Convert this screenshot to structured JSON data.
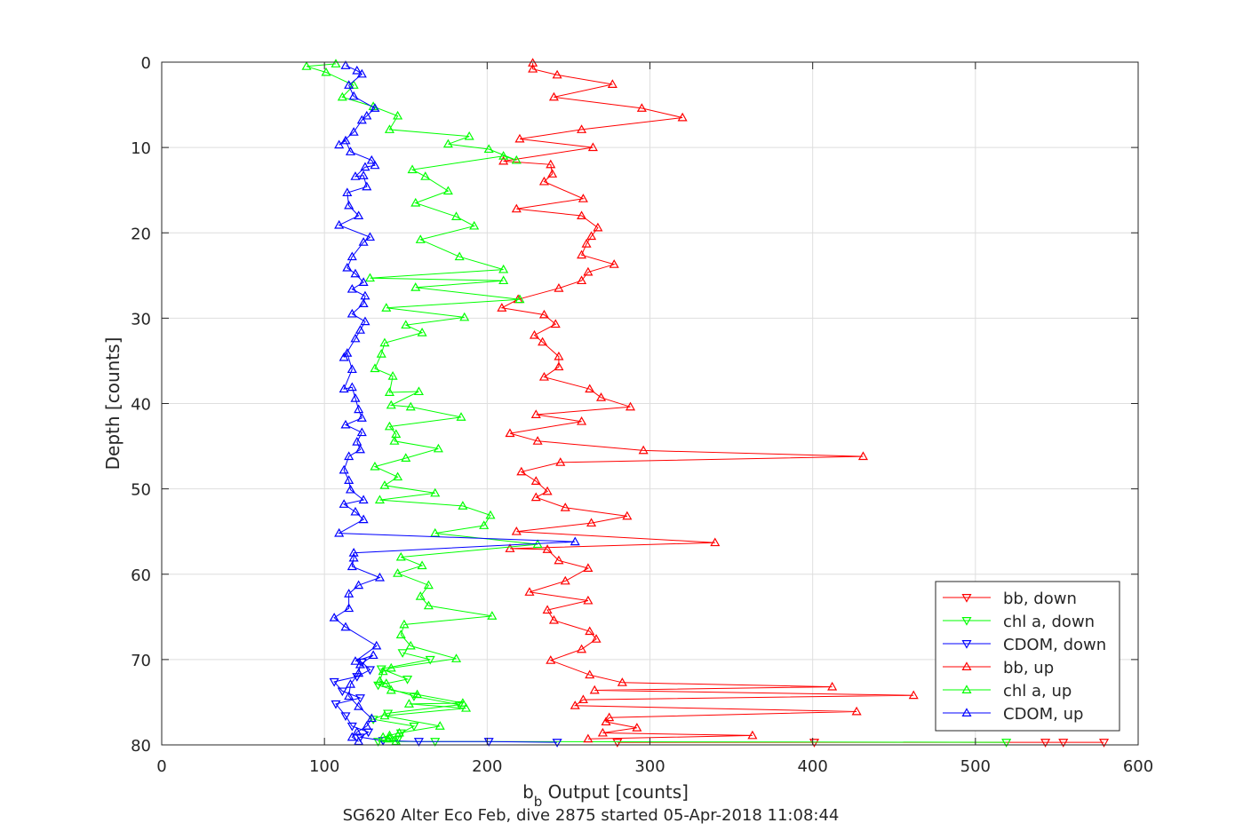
{
  "chart_data": {
    "type": "line",
    "title": "SG620 Alter Eco Feb, dive 2875 started 05-Apr-2018 11:08:44",
    "xlabel_main": "b",
    "xlabel_sub": "b",
    "xlabel_rest": " Output [counts]",
    "ylabel": "Depth [counts]",
    "xlim": [
      0,
      600
    ],
    "ylim": [
      0,
      80
    ],
    "y_reversed": true,
    "grid": true,
    "legend_position": "bottom-right",
    "xticks": [
      "0",
      "100",
      "200",
      "300",
      "400",
      "500",
      "600"
    ],
    "yticks": [
      "0",
      "10",
      "20",
      "30",
      "40",
      "50",
      "60",
      "70",
      "80"
    ],
    "series": [
      {
        "name": "bb, down",
        "color": "#ff0000",
        "marker": "down",
        "points": [
          [
            579,
            79.7
          ],
          [
            554,
            79.7
          ],
          [
            543,
            79.7
          ],
          [
            401,
            79.7
          ],
          [
            280,
            79.7
          ]
        ]
      },
      {
        "name": "chl a, down",
        "color": "#00ff00",
        "marker": "down",
        "points": [
          [
            519,
            79.7
          ],
          [
            168,
            79.6
          ],
          [
            133,
            79.6
          ],
          [
            145,
            79.4
          ],
          [
            147,
            78.6
          ],
          [
            155,
            77.8
          ],
          [
            130,
            77.0
          ],
          [
            139,
            76.3
          ],
          [
            183,
            75.3
          ],
          [
            155,
            74.3
          ],
          [
            133,
            73.0
          ],
          [
            151,
            72.3
          ],
          [
            135,
            71.1
          ],
          [
            165,
            70.0
          ],
          [
            148,
            69.2
          ]
        ]
      },
      {
        "name": "CDOM, down",
        "color": "#0000ff",
        "marker": "down",
        "points": [
          [
            243,
            79.7
          ],
          [
            201,
            79.6
          ],
          [
            158,
            79.6
          ],
          [
            136,
            79.5
          ],
          [
            122,
            79.1
          ],
          [
            127,
            78.5
          ],
          [
            117,
            77.8
          ],
          [
            113,
            76.6
          ],
          [
            107,
            75.2
          ],
          [
            122,
            74.5
          ],
          [
            111,
            73.7
          ],
          [
            106,
            72.6
          ],
          [
            120,
            72.0
          ],
          [
            128,
            71.2
          ],
          [
            123,
            70.3
          ]
        ]
      },
      {
        "name": "bb, up",
        "color": "#ff0000",
        "marker": "up",
        "points": [
          [
            262,
            79.3
          ],
          [
            363,
            78.9
          ],
          [
            271,
            78.6
          ],
          [
            292,
            78.0
          ],
          [
            273,
            77.3
          ],
          [
            275,
            76.8
          ],
          [
            427,
            76.1
          ],
          [
            254,
            75.4
          ],
          [
            259,
            74.7
          ],
          [
            462,
            74.2
          ],
          [
            266,
            73.6
          ],
          [
            412,
            73.2
          ],
          [
            283,
            72.7
          ],
          [
            263,
            71.8
          ],
          [
            239,
            70.1
          ],
          [
            258,
            68.8
          ],
          [
            267,
            67.6
          ],
          [
            263,
            66.7
          ],
          [
            241,
            65.4
          ],
          [
            237,
            64.2
          ],
          [
            262,
            63.1
          ],
          [
            226,
            62.1
          ],
          [
            248,
            60.8
          ],
          [
            262,
            59.3
          ],
          [
            244,
            58.4
          ],
          [
            237,
            57.1
          ],
          [
            214,
            57.0
          ],
          [
            340,
            56.3
          ],
          [
            218,
            55.0
          ],
          [
            264,
            54.0
          ],
          [
            286,
            53.2
          ],
          [
            248,
            52.2
          ],
          [
            230,
            51.0
          ],
          [
            237,
            50.3
          ],
          [
            230,
            49.1
          ],
          [
            221,
            48.0
          ],
          [
            245,
            46.9
          ],
          [
            431,
            46.2
          ],
          [
            296,
            45.5
          ],
          [
            231,
            44.4
          ],
          [
            214,
            43.5
          ],
          [
            258,
            42.1
          ],
          [
            230,
            41.3
          ],
          [
            288,
            40.4
          ],
          [
            270,
            39.3
          ],
          [
            263,
            38.3
          ],
          [
            235,
            36.9
          ],
          [
            244,
            35.7
          ],
          [
            244,
            34.5
          ],
          [
            234,
            32.8
          ],
          [
            229,
            32.0
          ],
          [
            242,
            30.7
          ],
          [
            235,
            29.6
          ],
          [
            209,
            28.8
          ],
          [
            219,
            27.8
          ],
          [
            244,
            26.5
          ],
          [
            258,
            25.6
          ],
          [
            262,
            24.6
          ],
          [
            278,
            23.7
          ],
          [
            258,
            22.6
          ],
          [
            261,
            21.3
          ],
          [
            264,
            20.4
          ],
          [
            268,
            19.4
          ],
          [
            258,
            18.0
          ],
          [
            218,
            17.2
          ],
          [
            259,
            16.0
          ],
          [
            235,
            14.0
          ],
          [
            240,
            13.1
          ],
          [
            239,
            12.0
          ],
          [
            210,
            11.6
          ],
          [
            265,
            10.0
          ],
          [
            220,
            9.0
          ],
          [
            258,
            7.9
          ],
          [
            320,
            6.5
          ],
          [
            295,
            5.4
          ],
          [
            241,
            4.1
          ],
          [
            277,
            2.6
          ],
          [
            243,
            1.5
          ],
          [
            228,
            0.8
          ],
          [
            228,
            0.1
          ]
        ]
      },
      {
        "name": "chl a, up",
        "color": "#00ff00",
        "marker": "up",
        "points": [
          [
            144,
            79.6
          ],
          [
            139,
            79.3
          ],
          [
            140,
            79.2
          ],
          [
            136,
            79.1
          ],
          [
            140,
            78.9
          ],
          [
            146,
            78.6
          ],
          [
            171,
            77.8
          ],
          [
            137,
            76.6
          ],
          [
            187,
            75.7
          ],
          [
            152,
            75.2
          ],
          [
            185,
            75.1
          ],
          [
            157,
            74.1
          ],
          [
            141,
            73.6
          ],
          [
            138,
            72.8
          ],
          [
            134,
            72.5
          ],
          [
            136,
            71.4
          ],
          [
            141,
            71.0
          ],
          [
            181,
            69.9
          ],
          [
            153,
            68.4
          ],
          [
            147,
            67.1
          ],
          [
            149,
            65.9
          ],
          [
            203,
            64.9
          ],
          [
            164,
            63.7
          ],
          [
            159,
            62.6
          ],
          [
            164,
            61.3
          ],
          [
            145,
            59.9
          ],
          [
            160,
            59.0
          ],
          [
            147,
            58.0
          ],
          [
            231,
            56.5
          ],
          [
            168,
            55.2
          ],
          [
            198,
            54.3
          ],
          [
            202,
            53.1
          ],
          [
            185,
            52.0
          ],
          [
            134,
            51.3
          ],
          [
            168,
            50.5
          ],
          [
            137,
            49.6
          ],
          [
            145,
            48.6
          ],
          [
            131,
            47.4
          ],
          [
            150,
            46.4
          ],
          [
            170,
            45.3
          ],
          [
            143,
            44.4
          ],
          [
            144,
            43.6
          ],
          [
            140,
            42.7
          ],
          [
            184,
            41.6
          ],
          [
            153,
            40.4
          ],
          [
            141,
            40.2
          ],
          [
            158,
            38.6
          ],
          [
            140,
            38.7
          ],
          [
            142,
            36.8
          ],
          [
            131,
            35.9
          ],
          [
            135,
            34.2
          ],
          [
            137,
            32.9
          ],
          [
            160,
            31.7
          ],
          [
            150,
            30.8
          ],
          [
            186,
            29.9
          ],
          [
            138,
            28.8
          ],
          [
            220,
            27.8
          ],
          [
            156,
            26.4
          ],
          [
            210,
            25.6
          ],
          [
            128,
            25.3
          ],
          [
            210,
            24.3
          ],
          [
            183,
            22.8
          ],
          [
            159,
            20.8
          ],
          [
            192,
            19.2
          ],
          [
            181,
            18.1
          ],
          [
            156,
            16.5
          ],
          [
            176,
            15.1
          ],
          [
            162,
            13.4
          ],
          [
            154,
            12.6
          ],
          [
            210,
            11.0
          ],
          [
            218,
            11.5
          ],
          [
            201,
            10.2
          ],
          [
            176,
            9.6
          ],
          [
            189,
            8.7
          ],
          [
            140,
            7.9
          ],
          [
            145,
            6.3
          ],
          [
            130,
            5.2
          ],
          [
            111,
            4.1
          ],
          [
            118,
            2.7
          ],
          [
            101,
            1.2
          ],
          [
            89,
            0.5
          ],
          [
            107,
            0.2
          ]
        ]
      },
      {
        "name": "CDOM, up",
        "color": "#0000ff",
        "marker": "up",
        "points": [
          [
            121,
            79.6
          ],
          [
            117,
            79.1
          ],
          [
            120,
            78.5
          ],
          [
            126,
            77.8
          ],
          [
            129,
            76.9
          ],
          [
            121,
            75.5
          ],
          [
            115,
            74.3
          ],
          [
            116,
            72.9
          ],
          [
            121,
            71.6
          ],
          [
            122,
            70.6
          ],
          [
            130,
            69.5
          ],
          [
            119,
            70.2
          ],
          [
            132,
            68.4
          ],
          [
            113,
            66.2
          ],
          [
            106,
            65.1
          ],
          [
            115,
            64.0
          ],
          [
            115,
            62.3
          ],
          [
            121,
            61.3
          ],
          [
            134,
            60.4
          ],
          [
            117,
            59.1
          ],
          [
            118,
            58.1
          ],
          [
            118,
            57.5
          ],
          [
            254,
            56.2
          ],
          [
            109,
            55.2
          ],
          [
            124,
            53.6
          ],
          [
            119,
            52.7
          ],
          [
            112,
            51.8
          ],
          [
            124,
            51.3
          ],
          [
            116,
            50.1
          ],
          [
            115,
            49.0
          ],
          [
            112,
            47.8
          ],
          [
            115,
            46.2
          ],
          [
            122,
            45.4
          ],
          [
            120,
            44.5
          ],
          [
            123,
            43.4
          ],
          [
            113,
            42.5
          ],
          [
            123,
            41.7
          ],
          [
            121,
            40.7
          ],
          [
            119,
            39.4
          ],
          [
            117,
            38.1
          ],
          [
            112,
            38.3
          ],
          [
            117,
            36.0
          ],
          [
            114,
            34.1
          ],
          [
            112,
            34.6
          ],
          [
            119,
            32.4
          ],
          [
            122,
            31.4
          ],
          [
            125,
            30.4
          ],
          [
            117,
            29.5
          ],
          [
            124,
            28.3
          ],
          [
            125,
            27.4
          ],
          [
            117,
            26.6
          ],
          [
            124,
            25.8
          ],
          [
            119,
            24.8
          ],
          [
            114,
            24.1
          ],
          [
            117,
            22.8
          ],
          [
            124,
            21.1
          ],
          [
            128,
            20.5
          ],
          [
            109,
            19.1
          ],
          [
            121,
            18.0
          ],
          [
            115,
            16.8
          ],
          [
            114,
            15.3
          ],
          [
            126,
            14.6
          ],
          [
            124,
            13.3
          ],
          [
            119,
            13.4
          ],
          [
            125,
            12.3
          ],
          [
            131,
            12.1
          ],
          [
            129,
            11.5
          ],
          [
            116,
            10.5
          ],
          [
            113,
            9.2
          ],
          [
            109,
            9.7
          ],
          [
            118,
            8.2
          ],
          [
            123,
            6.8
          ],
          [
            126,
            6.3
          ],
          [
            131,
            5.4
          ],
          [
            118,
            4.0
          ],
          [
            115,
            2.7
          ],
          [
            123,
            1.4
          ],
          [
            120,
            1.0
          ],
          [
            113,
            0.4
          ]
        ]
      }
    ]
  }
}
